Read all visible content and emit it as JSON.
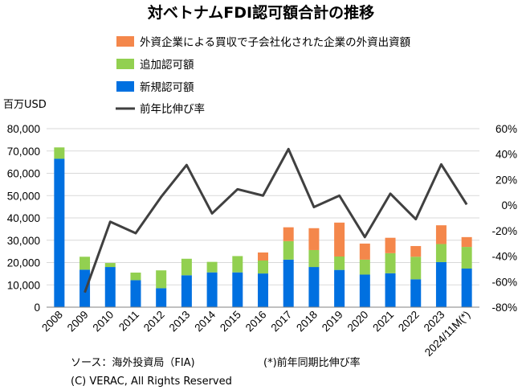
{
  "chart_data": {
    "type": "bar",
    "title": "対ベトナムFDI認可額合計の推移",
    "y_unit_label": "百万USD",
    "categories": [
      "2008",
      "2009",
      "2010",
      "2011",
      "2012",
      "2013",
      "2014",
      "2015",
      "2016",
      "2017",
      "2018",
      "2019",
      "2020",
      "2021",
      "2022",
      "2023",
      "2024/11M(*)"
    ],
    "stacked": true,
    "ylim": [
      0,
      80000
    ],
    "y_ticks": [
      "0",
      "10,000",
      "20,000",
      "30,000",
      "40,000",
      "50,000",
      "60,000",
      "70,000",
      "80,000"
    ],
    "y2lim": [
      -80,
      60
    ],
    "y2_ticks": [
      "-80%",
      "-60%",
      "-40%",
      "-20%",
      "0%",
      "20%",
      "40%",
      "60%"
    ],
    "series": [
      {
        "name": "新規認可額",
        "kind": "bar",
        "axis": "left",
        "color": "#0070E0",
        "values": [
          66500,
          16800,
          18000,
          12100,
          8500,
          14300,
          15600,
          15600,
          15100,
          21300,
          18000,
          16700,
          14600,
          15200,
          12500,
          20200,
          17300
        ]
      },
      {
        "name": "追加認可額",
        "kind": "bar",
        "axis": "left",
        "color": "#92D050",
        "values": [
          5100,
          5800,
          1800,
          3400,
          8000,
          7400,
          4700,
          7300,
          5800,
          8300,
          7600,
          6000,
          6700,
          9000,
          10100,
          8100,
          9700
        ]
      },
      {
        "name": "外資企業による買収で子会社化された企業の外資出資額",
        "kind": "bar",
        "axis": "left",
        "color": "#F4874B",
        "values": [
          0,
          0,
          0,
          0,
          0,
          0,
          0,
          0,
          3600,
          6200,
          9800,
          15200,
          7200,
          6900,
          4800,
          8400,
          4400
        ]
      },
      {
        "name": "前年比伸び率",
        "kind": "line",
        "axis": "right",
        "color": "#404040",
        "values": [
          null,
          -68.5,
          -13,
          -22,
          6.5,
          31.5,
          -6.5,
          12.5,
          7.5,
          44,
          -1.5,
          7.5,
          -25,
          9,
          -11,
          32,
          0.5
        ]
      }
    ],
    "legend_order": [
      "外資企業による買収で子会社化された企業の外資出資額",
      "追加認可額",
      "新規認可額",
      "前年比伸び率"
    ]
  },
  "source_note": "ソース：海外投資局（FIA)",
  "footnote": "(*)前年同期比伸び率",
  "copyright": "(C) VERAC, All Rights Reserved"
}
